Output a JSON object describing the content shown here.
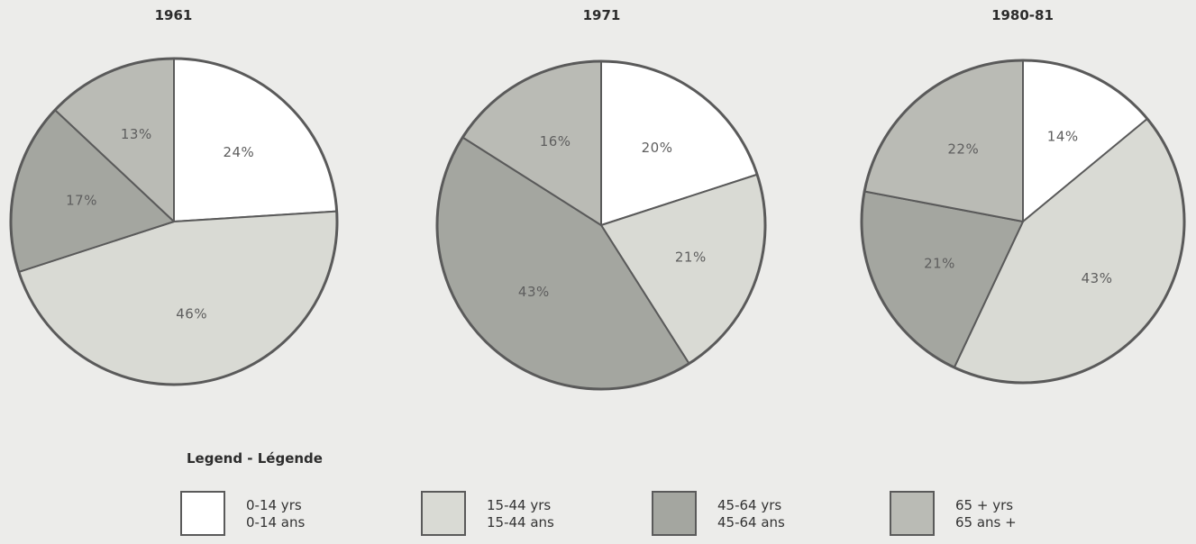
{
  "colors": {
    "age_0_14": "#ffffff",
    "age_15_44": "#d9dad4",
    "age_45_64": "#a4a6a0",
    "age_65_plus": "#babbb5"
  },
  "legend": {
    "title": "Legend - Légende",
    "items": [
      {
        "en": "0-14 yrs",
        "fr": "0-14 ans",
        "color_key": "age_0_14"
      },
      {
        "en": "15-44 yrs",
        "fr": "15-44 ans",
        "color_key": "age_15_44"
      },
      {
        "en": "45-64 yrs",
        "fr": "45-64 ans",
        "color_key": "age_45_64"
      },
      {
        "en": "65 + yrs",
        "fr": "65 ans +",
        "color_key": "age_65_plus"
      }
    ]
  },
  "chart_data": [
    {
      "type": "pie",
      "title": "1961",
      "slices": [
        {
          "category": "0-14",
          "value": 24,
          "label": "24%"
        },
        {
          "category": "15-44",
          "value": 46,
          "label": "46%"
        },
        {
          "category": "45-64",
          "value": 17,
          "label": "17%"
        },
        {
          "category": "65+",
          "value": 13,
          "label": "13%"
        }
      ]
    },
    {
      "type": "pie",
      "title": "1971",
      "slices": [
        {
          "category": "0-14",
          "value": 20,
          "label": "20%"
        },
        {
          "category": "15-44",
          "value": 21,
          "label": "21%"
        },
        {
          "category": "45-64",
          "value": 43,
          "label": "43%"
        },
        {
          "category": "65+",
          "value": 16,
          "label": "16%"
        }
      ]
    },
    {
      "type": "pie",
      "title": "1980-81",
      "slices": [
        {
          "category": "0-14",
          "value": 14,
          "label": "14%"
        },
        {
          "category": "15-44",
          "value": 43,
          "label": "43%"
        },
        {
          "category": "45-64",
          "value": 21,
          "label": "21%"
        },
        {
          "category": "65+",
          "value": 22,
          "label": "22%"
        }
      ]
    }
  ]
}
